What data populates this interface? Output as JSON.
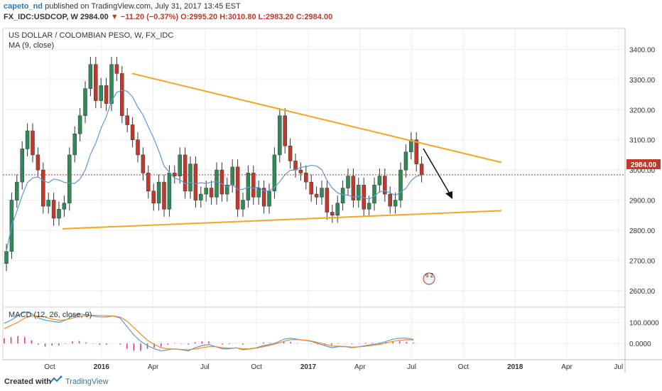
{
  "header": {
    "author": "capeto_nd",
    "published": "published on TradingView.com, July 31, 2017 13:45 EST",
    "symbol": "FX_IDC:USDCOP, W",
    "price": "2984.00",
    "change": "−11.20 (−0.37%)",
    "ohlc": "O:2995.20 H:3010.80 L:2983.20 C:2984.00"
  },
  "main_pane": {
    "title": "US DOLLAR / COLOMBIAN PESO, W, FX_IDC",
    "indicator": "MA (9, close)",
    "price_badge": "2984.00",
    "marker_text": "6 2"
  },
  "macd_pane": {
    "title": "MACD (12, 26, close, 9)"
  },
  "footer": {
    "created": "Created with",
    "brand": "TradingView"
  },
  "colors": {
    "up": "#2e8b57",
    "down": "#c0392b",
    "trendline": "#f5a623",
    "ma": "#5b9bd5",
    "macd_signal": "#f08a24",
    "histogram": "#d63384",
    "price_line": "#c0392b"
  },
  "chart_data": [
    {
      "type": "candlestick",
      "title": "US DOLLAR / COLOMBIAN PESO, W, FX_IDC",
      "x_ticks": [
        "Oct",
        "2016",
        "Apr",
        "Jul",
        "Oct",
        "2017",
        "Apr",
        "Jul",
        "Oct",
        "2018",
        "Apr",
        "Jul"
      ],
      "y_ticks": [
        3400,
        3300,
        3200,
        3100,
        3000,
        2900,
        2800,
        2700,
        2600
      ],
      "ylim": [
        2550,
        3460
      ],
      "last_price": 2984.0,
      "series": [
        {
          "name": "USDCOP weekly",
          "close": [
            2730,
            2900,
            2960,
            3070,
            3130,
            3050,
            3000,
            2880,
            2900,
            2840,
            2870,
            2890,
            3050,
            3120,
            3180,
            3270,
            3350,
            3230,
            3280,
            3220,
            3350,
            3320,
            3180,
            3150,
            3100,
            3050,
            2990,
            2930,
            2890,
            2960,
            2870,
            2990,
            2980,
            3050,
            2930,
            3020,
            2900,
            2920,
            2940,
            2910,
            3000,
            2920,
            2950,
            3010,
            2870,
            2900,
            2990,
            2910,
            2940,
            2880,
            2930,
            3050,
            3180,
            3080,
            3030,
            3000,
            2990,
            2960,
            2920,
            2910,
            2940,
            2860,
            2850,
            2890,
            2940,
            2980,
            2900,
            2950,
            2870,
            2890,
            2950,
            2980,
            2920,
            2880,
            2900,
            3000,
            3060,
            3100,
            3020,
            2984
          ]
        }
      ],
      "trendlines": [
        {
          "name": "upper",
          "from": [
            3320,
            "Mar 2016"
          ],
          "to": [
            3025,
            "Dec 2017"
          ]
        },
        {
          "name": "lower",
          "from": [
            2805,
            "Nov 2015"
          ],
          "to": [
            2865,
            "Dec 2017"
          ]
        }
      ]
    },
    {
      "type": "line",
      "title": "MACD (12, 26, close, 9)",
      "y_ticks": [
        100.0,
        0.0
      ],
      "ylim": [
        -70,
        165
      ],
      "series": [
        {
          "name": "MACD",
          "values": [
            95,
            110,
            130,
            150,
            140,
            120,
            110,
            105,
            100,
            110,
            130,
            140,
            135,
            130,
            125,
            125,
            130,
            120,
            80,
            40,
            10,
            -10,
            -25,
            -35,
            -30,
            -25,
            -30,
            -35,
            -20,
            -10,
            -5,
            -15,
            -25,
            -25,
            -20,
            -30,
            -25,
            -20,
            -10,
            -5,
            5,
            20,
            25,
            20,
            15,
            10,
            0,
            -10,
            -20,
            -15,
            -15,
            -20,
            -15,
            -10,
            -5,
            0,
            10,
            20,
            25,
            25,
            20
          ]
        },
        {
          "name": "Signal",
          "values": [
            70,
            85,
            100,
            120,
            130,
            130,
            125,
            115,
            110,
            112,
            120,
            128,
            132,
            133,
            132,
            131,
            130,
            125,
            105,
            75,
            45,
            15,
            -5,
            -20,
            -25,
            -27,
            -28,
            -30,
            -26,
            -20,
            -15,
            -15,
            -20,
            -22,
            -21,
            -25,
            -25,
            -22,
            -15,
            -8,
            0,
            10,
            18,
            18,
            16,
            12,
            5,
            -3,
            -12,
            -13,
            -14,
            -17,
            -16,
            -13,
            -9,
            -5,
            3,
            10,
            15,
            18,
            16
          ]
        },
        {
          "name": "Histogram",
          "values": [
            25,
            30,
            35,
            30,
            15,
            -5,
            -15,
            -10,
            -10,
            -2,
            10,
            12,
            5,
            -2,
            -7,
            -6,
            0,
            -5,
            -25,
            -35,
            -35,
            -25,
            -20,
            -15,
            -5,
            2,
            -2,
            -5,
            6,
            10,
            10,
            0,
            -5,
            -3,
            1,
            -5,
            0,
            2,
            5,
            3,
            5,
            10,
            7,
            2,
            -1,
            -2,
            -5,
            -7,
            -8,
            -2,
            -1,
            -3,
            1,
            3,
            4,
            5,
            7,
            10,
            10,
            7,
            4
          ]
        }
      ]
    }
  ]
}
